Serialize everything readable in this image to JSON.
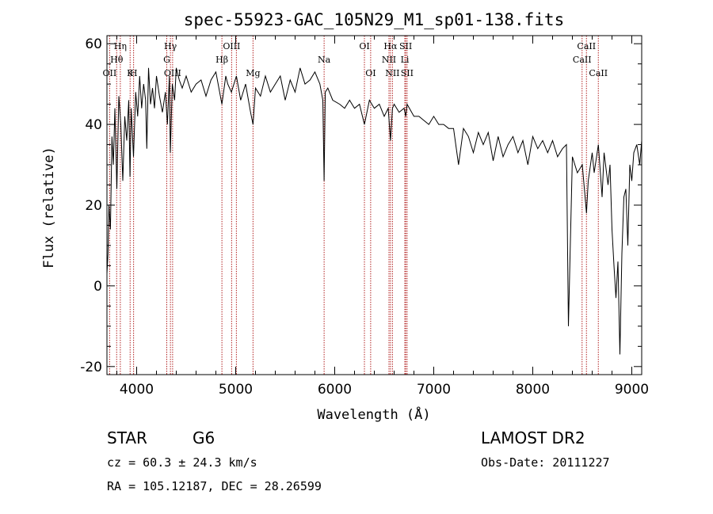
{
  "chart_data": {
    "type": "line",
    "title": "spec-55923-GAC_105N29_M1_sp01-138.fits",
    "xlabel": "Wavelength (Å)",
    "ylabel": "Flux (relative)",
    "xlim": [
      3700,
      9100
    ],
    "ylim": [
      -22,
      62
    ],
    "xticks": [
      4000,
      5000,
      6000,
      7000,
      8000,
      9000
    ],
    "yticks": [
      -20,
      0,
      20,
      40,
      60
    ],
    "grid": false,
    "series": [
      {
        "x": [
          3700,
          3710,
          3720,
          3735,
          3750,
          3765,
          3780,
          3800,
          3820,
          3840,
          3860,
          3880,
          3900,
          3920,
          3933,
          3945,
          3968,
          3990,
          4010,
          4030,
          4050,
          4070,
          4090,
          4102,
          4120,
          4140,
          4160,
          4180,
          4200,
          4230,
          4260,
          4290,
          4310,
          4330,
          4340,
          4360,
          4383,
          4400,
          4430,
          4460,
          4500,
          4550,
          4600,
          4650,
          4700,
          4750,
          4800,
          4861,
          4900,
          4920,
          4957,
          5007,
          5050,
          5100,
          5150,
          5175,
          5200,
          5250,
          5300,
          5350,
          5400,
          5450,
          5500,
          5550,
          5600,
          5650,
          5700,
          5750,
          5800,
          5850,
          5880,
          5893,
          5905,
          5930,
          5980,
          6050,
          6100,
          6150,
          6200,
          6250,
          6300,
          6350,
          6400,
          6450,
          6500,
          6540,
          6563,
          6583,
          6600,
          6650,
          6700,
          6717,
          6731,
          6800,
          6850,
          6900,
          6950,
          7000,
          7050,
          7100,
          7150,
          7200,
          7250,
          7300,
          7350,
          7400,
          7450,
          7500,
          7550,
          7600,
          7650,
          7700,
          7750,
          7800,
          7850,
          7900,
          7950,
          8000,
          8050,
          8100,
          8150,
          8200,
          8250,
          8300,
          8340,
          8360,
          8400,
          8450,
          8500,
          8542,
          8560,
          8600,
          8620,
          8662,
          8700,
          8720,
          8760,
          8780,
          8800,
          8820,
          8840,
          8860,
          8880,
          8900,
          8920,
          8940,
          8960,
          8980,
          9000,
          9020,
          9050,
          9080,
          9100
        ],
        "y": [
          3,
          8,
          20,
          14,
          37,
          30,
          44,
          24,
          47,
          40,
          26,
          42,
          36,
          46,
          27,
          44,
          32,
          48,
          42,
          52,
          44,
          50,
          46,
          34,
          54,
          45,
          49,
          44,
          52,
          47,
          43,
          48,
          40,
          52,
          33,
          50,
          46,
          54,
          51,
          49,
          52,
          48,
          50,
          51,
          47,
          51,
          53,
          45,
          52,
          50,
          48,
          52,
          46,
          50,
          43,
          40,
          49,
          47,
          52,
          48,
          50,
          52,
          46,
          51,
          48,
          54,
          50,
          51,
          53,
          50,
          46,
          26,
          48,
          49,
          46,
          45,
          44,
          46,
          44,
          45,
          40,
          46,
          44,
          45,
          42,
          44,
          36,
          44,
          45,
          43,
          44,
          42,
          45,
          42,
          42,
          41,
          40,
          42,
          40,
          40,
          39,
          39,
          30,
          39,
          37,
          33,
          38,
          35,
          38,
          31,
          37,
          32,
          35,
          37,
          33,
          36,
          30,
          37,
          34,
          36,
          33,
          36,
          32,
          34,
          35,
          -10,
          32,
          28,
          30,
          18,
          26,
          33,
          28,
          35,
          22,
          33,
          25,
          30,
          14,
          5,
          -3,
          6,
          -17,
          8,
          22,
          24,
          10,
          30,
          26,
          33,
          35,
          30,
          36
        ]
      }
    ],
    "spectral_lines": [
      {
        "x": 3727,
        "label": "OII",
        "row": 3
      },
      {
        "x": 3798,
        "label": "Hθ",
        "row": 2
      },
      {
        "x": 3835,
        "label": "Hη",
        "row": 1
      },
      {
        "x": 3934,
        "label": "K",
        "row": 3
      },
      {
        "x": 3969,
        "label": "H",
        "row": 3
      },
      {
        "x": 4304,
        "label": "G",
        "row": 2
      },
      {
        "x": 4341,
        "label": "Hγ",
        "row": 1
      },
      {
        "x": 4363,
        "label": "OIII",
        "row": 3
      },
      {
        "x": 4861,
        "label": "Hβ",
        "row": 2
      },
      {
        "x": 4959,
        "label": "OIII",
        "row": 1
      },
      {
        "x": 5007,
        "label": "",
        "row": 1
      },
      {
        "x": 5175,
        "label": "Mg",
        "row": 3
      },
      {
        "x": 5893,
        "label": "Na",
        "row": 2
      },
      {
        "x": 6300,
        "label": "OI",
        "row": 1
      },
      {
        "x": 6363,
        "label": "OI",
        "row": 3
      },
      {
        "x": 6548,
        "label": "NII",
        "row": 2
      },
      {
        "x": 6563,
        "label": "Hα",
        "row": 1
      },
      {
        "x": 6583,
        "label": "NII",
        "row": 3
      },
      {
        "x": 6708,
        "label": "Li",
        "row": 2
      },
      {
        "x": 6717,
        "label": "SII",
        "row": 1
      },
      {
        "x": 6731,
        "label": "SII",
        "row": 3
      },
      {
        "x": 8498,
        "label": "CaII",
        "row": 2
      },
      {
        "x": 8542,
        "label": "CaII",
        "row": 1
      },
      {
        "x": 8662,
        "label": "CaII",
        "row": 3
      }
    ],
    "line_color": "#b22222"
  },
  "info": {
    "object_class": "STAR",
    "subclass": "G6",
    "redshift": "cz = 60.3 ± 24.3 km/s",
    "coords": "RA = 105.12187, DEC =  28.26599",
    "survey": "LAMOST DR2",
    "obs_date": "Obs-Date: 20111227"
  }
}
